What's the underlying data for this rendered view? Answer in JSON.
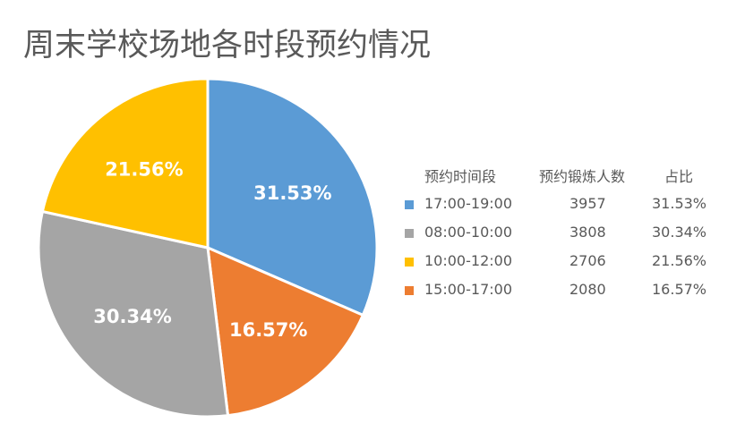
{
  "title": "周末学校场地各时段预约情况",
  "legend": {
    "headers": [
      "预约时间段",
      "预约锻炼人数",
      "占比"
    ],
    "rows": [
      {
        "period": "17:00-19:00",
        "count": "3957",
        "pct": "31.53%",
        "color": "#5B9BD5"
      },
      {
        "period": "08:00-10:00",
        "count": "3808",
        "pct": "30.34%",
        "color": "#A5A5A5"
      },
      {
        "period": "10:00-12:00",
        "count": "2706",
        "pct": "21.56%",
        "color": "#FFC000"
      },
      {
        "period": "15:00-17:00",
        "count": "2080",
        "pct": "16.57%",
        "color": "#ED7D31"
      }
    ]
  },
  "chart_data": {
    "type": "pie",
    "title": "周末学校场地各时段预约情况",
    "slice_order_clockwise_from_top": [
      "17:00-19:00",
      "15:00-17:00",
      "08:00-10:00",
      "10:00-12:00"
    ],
    "categories": [
      "17:00-19:00",
      "08:00-10:00",
      "10:00-12:00",
      "15:00-17:00"
    ],
    "values": [
      3957,
      3808,
      2706,
      2080
    ],
    "percentages": [
      31.53,
      30.34,
      21.56,
      16.57
    ],
    "colors": [
      "#5B9BD5",
      "#A5A5A5",
      "#FFC000",
      "#ED7D31"
    ],
    "data_labels": [
      "31.53%",
      "30.34%",
      "21.56%",
      "16.57%"
    ],
    "legend_position": "right",
    "legend_headers": [
      "预约时间段",
      "预约锻炼人数",
      "占比"
    ]
  }
}
